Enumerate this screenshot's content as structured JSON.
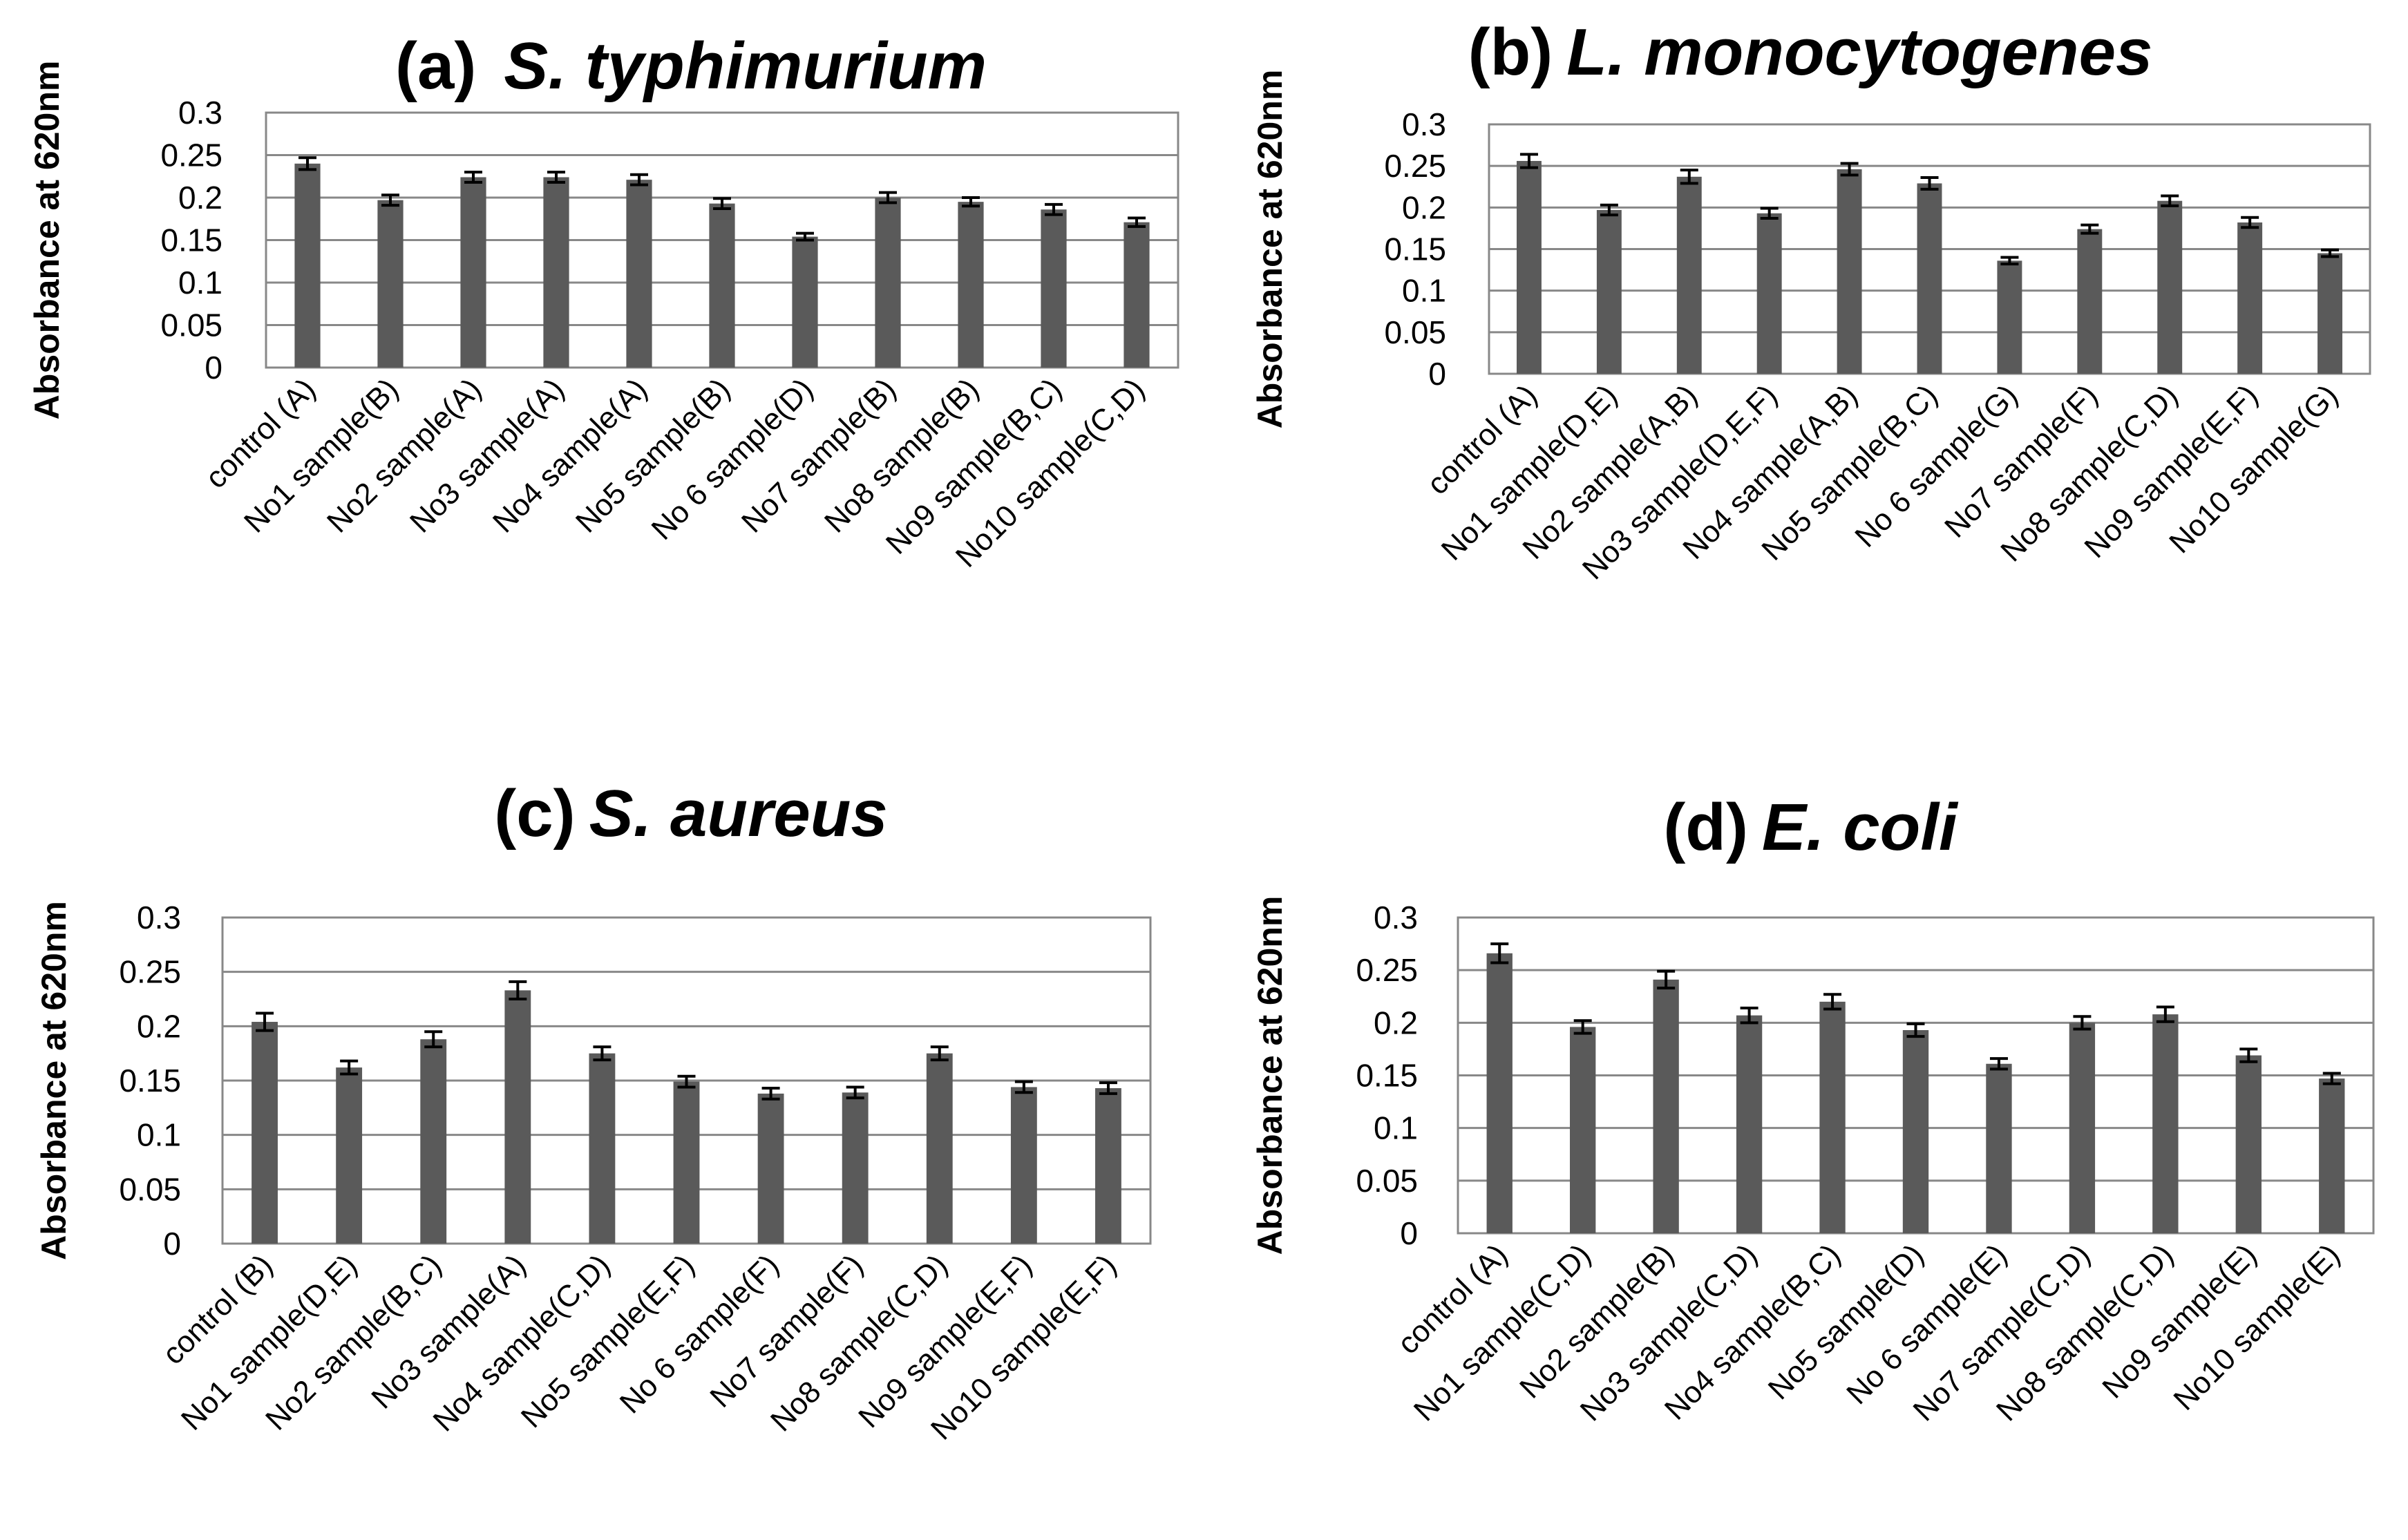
{
  "figure": {
    "panels": [
      {
        "prefix": "(a)",
        "species": "S. typhimurium"
      },
      {
        "prefix": "(b)",
        "species": "L. monocytogenes"
      },
      {
        "prefix": "(c)",
        "species": "S. aureus"
      },
      {
        "prefix": "(d)",
        "species": "E. coli"
      }
    ]
  },
  "colors": {
    "bar": "#5a5a5a",
    "grid": "#888888",
    "frame": "#888888",
    "error_bar": "#000000"
  },
  "chart_data": [
    {
      "type": "bar",
      "title": "(a)  S. typhimurium",
      "ylabel": "Absorbance at 620nm",
      "xlabel": "",
      "ylim": [
        0,
        0.3
      ],
      "yticks": [
        "0",
        "0.05",
        "0.1",
        "0.15",
        "0.2",
        "0.25",
        "0.3"
      ],
      "grid": true,
      "categories": [
        "control (A)",
        "No1 sample(B)",
        "No2 sample(A)",
        "No3 sample(A)",
        "No4 sample(A)",
        "No5 sample(B)",
        "No 6 sample(D)",
        "No7 sample(B)",
        "No8 sample(B)",
        "No9 sample(B,C)",
        "No10 sample(C,D)"
      ],
      "values": [
        0.24,
        0.197,
        0.224,
        0.224,
        0.221,
        0.193,
        0.154,
        0.2,
        0.195,
        0.186,
        0.171
      ],
      "errors": [
        0.007,
        0.006,
        0.006,
        0.006,
        0.006,
        0.006,
        0.004,
        0.006,
        0.005,
        0.006,
        0.005
      ]
    },
    {
      "type": "bar",
      "title": "(b) L. monocytogenes",
      "ylabel": "Absorbance at 620nm",
      "xlabel": "",
      "ylim": [
        0,
        0.3
      ],
      "yticks": [
        "0",
        "0.05",
        "0.1",
        "0.15",
        "0.2",
        "0.25",
        "0.3"
      ],
      "grid": true,
      "categories": [
        "control (A)",
        "No1 sample(D,E)",
        "No2 sample(A,B)",
        "No3 sample(D,E,F)",
        "No4 sample(A,B)",
        "No5 sample(B,C)",
        "No 6 sample(G)",
        "No7 sample(F)",
        "No8 sample(C,D)",
        "No9 sample(E,F)",
        "No10 sample(G)"
      ],
      "values": [
        0.256,
        0.197,
        0.237,
        0.193,
        0.246,
        0.229,
        0.136,
        0.174,
        0.208,
        0.182,
        0.145
      ],
      "errors": [
        0.008,
        0.006,
        0.008,
        0.006,
        0.007,
        0.007,
        0.004,
        0.005,
        0.006,
        0.006,
        0.004
      ]
    },
    {
      "type": "bar",
      "title": "(c) S. aureus",
      "ylabel": "Absorbance at 620nm",
      "xlabel": "",
      "ylim": [
        0,
        0.3
      ],
      "yticks": [
        "0",
        "0.05",
        "0.1",
        "0.15",
        "0.2",
        "0.25",
        "0.3"
      ],
      "grid": true,
      "categories": [
        "control (B)",
        "No1 sample(D,E)",
        "No2 sample(B,C)",
        "No3 sample(A)",
        "No4 sample(C,D)",
        "No5 sample(E,F)",
        "No 6 sample(F)",
        "No7 sample(F)",
        "No8 sample(C,D)",
        "No9 sample(E,F)",
        "No10 sample(E,F)"
      ],
      "values": [
        0.204,
        0.162,
        0.188,
        0.233,
        0.175,
        0.149,
        0.138,
        0.139,
        0.175,
        0.144,
        0.143
      ],
      "errors": [
        0.008,
        0.006,
        0.007,
        0.008,
        0.006,
        0.005,
        0.005,
        0.005,
        0.006,
        0.005,
        0.005
      ]
    },
    {
      "type": "bar",
      "title": "(d) E. coli",
      "ylabel": "Absorbance at 620nm",
      "xlabel": "",
      "ylim": [
        0,
        0.3
      ],
      "yticks": [
        "0",
        "0.05",
        "0.1",
        "0.15",
        "0.2",
        "0.25",
        "0.3"
      ],
      "grid": true,
      "categories": [
        "control (A)",
        "No1 sample(C,D)",
        "No2 sample(B)",
        "No3 sample(C,D)",
        "No4 sample(B,C)",
        "No5 sample(D)",
        "No 6 sample(E)",
        "No7 sample(C,D)",
        "No8 sample(C,D)",
        "No9 sample(E)",
        "No10 sample(E)"
      ],
      "values": [
        0.266,
        0.196,
        0.241,
        0.207,
        0.22,
        0.193,
        0.161,
        0.2,
        0.208,
        0.169,
        0.147
      ],
      "errors": [
        0.009,
        0.006,
        0.008,
        0.007,
        0.007,
        0.006,
        0.005,
        0.006,
        0.007,
        0.006,
        0.005
      ]
    }
  ]
}
